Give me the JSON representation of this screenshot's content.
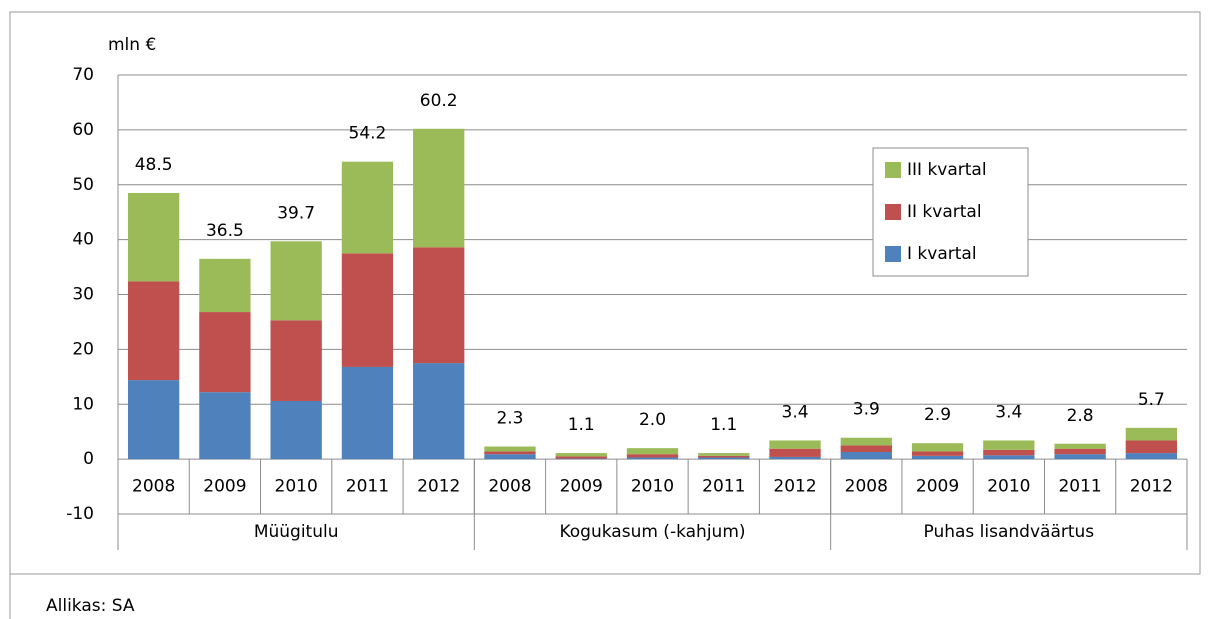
{
  "chart_data": {
    "type": "stacked-bar",
    "y_label": "mln €",
    "source": "Allikas: SA",
    "categories": [
      "2008",
      "2009",
      "2010",
      "2011",
      "2012",
      "2008",
      "2009",
      "2010",
      "2011",
      "2012",
      "2008",
      "2009",
      "2010",
      "2011",
      "2012"
    ],
    "groups": [
      "Müügitulu",
      "Kogukasum (-kahjum)",
      "Puhas lisandväärtus"
    ],
    "series": [
      {
        "name": "I kvartal",
        "color": "#4f81bd",
        "values": [
          14.4,
          12.2,
          10.6,
          16.8,
          17.5,
          0.9,
          0.1,
          0.3,
          0.3,
          0.4,
          1.3,
          0.6,
          0.7,
          0.9,
          1.1
        ]
      },
      {
        "name": "II kvartal",
        "color": "#c0504d",
        "values": [
          18.0,
          14.6,
          14.7,
          20.7,
          21.1,
          0.5,
          0.4,
          0.6,
          0.3,
          1.5,
          1.2,
          0.8,
          1.0,
          1.0,
          2.3
        ]
      },
      {
        "name": "III kvartal",
        "color": "#9bbb59",
        "values": [
          16.1,
          9.7,
          14.4,
          16.7,
          21.6,
          0.9,
          0.6,
          1.1,
          0.5,
          1.5,
          1.4,
          1.5,
          1.7,
          0.9,
          2.3
        ]
      }
    ],
    "totals": [
      48.5,
      36.5,
      39.7,
      54.2,
      60.2,
      2.3,
      1.1,
      2.0,
      1.1,
      3.4,
      3.9,
      2.9,
      3.4,
      2.8,
      5.7
    ],
    "total_labels": [
      "48.5",
      "36.5",
      "39.7",
      "54.2",
      "60.2",
      "2.3",
      "1.1",
      "2.0",
      "1.1",
      "3.4",
      "3.9",
      "2.9",
      "3.4",
      "2.8",
      "5.7"
    ],
    "ylim": [
      -10,
      70
    ],
    "yticks": [
      -10,
      0,
      10,
      20,
      30,
      40,
      50,
      60,
      70
    ],
    "grid": true,
    "legend": "upper right"
  }
}
